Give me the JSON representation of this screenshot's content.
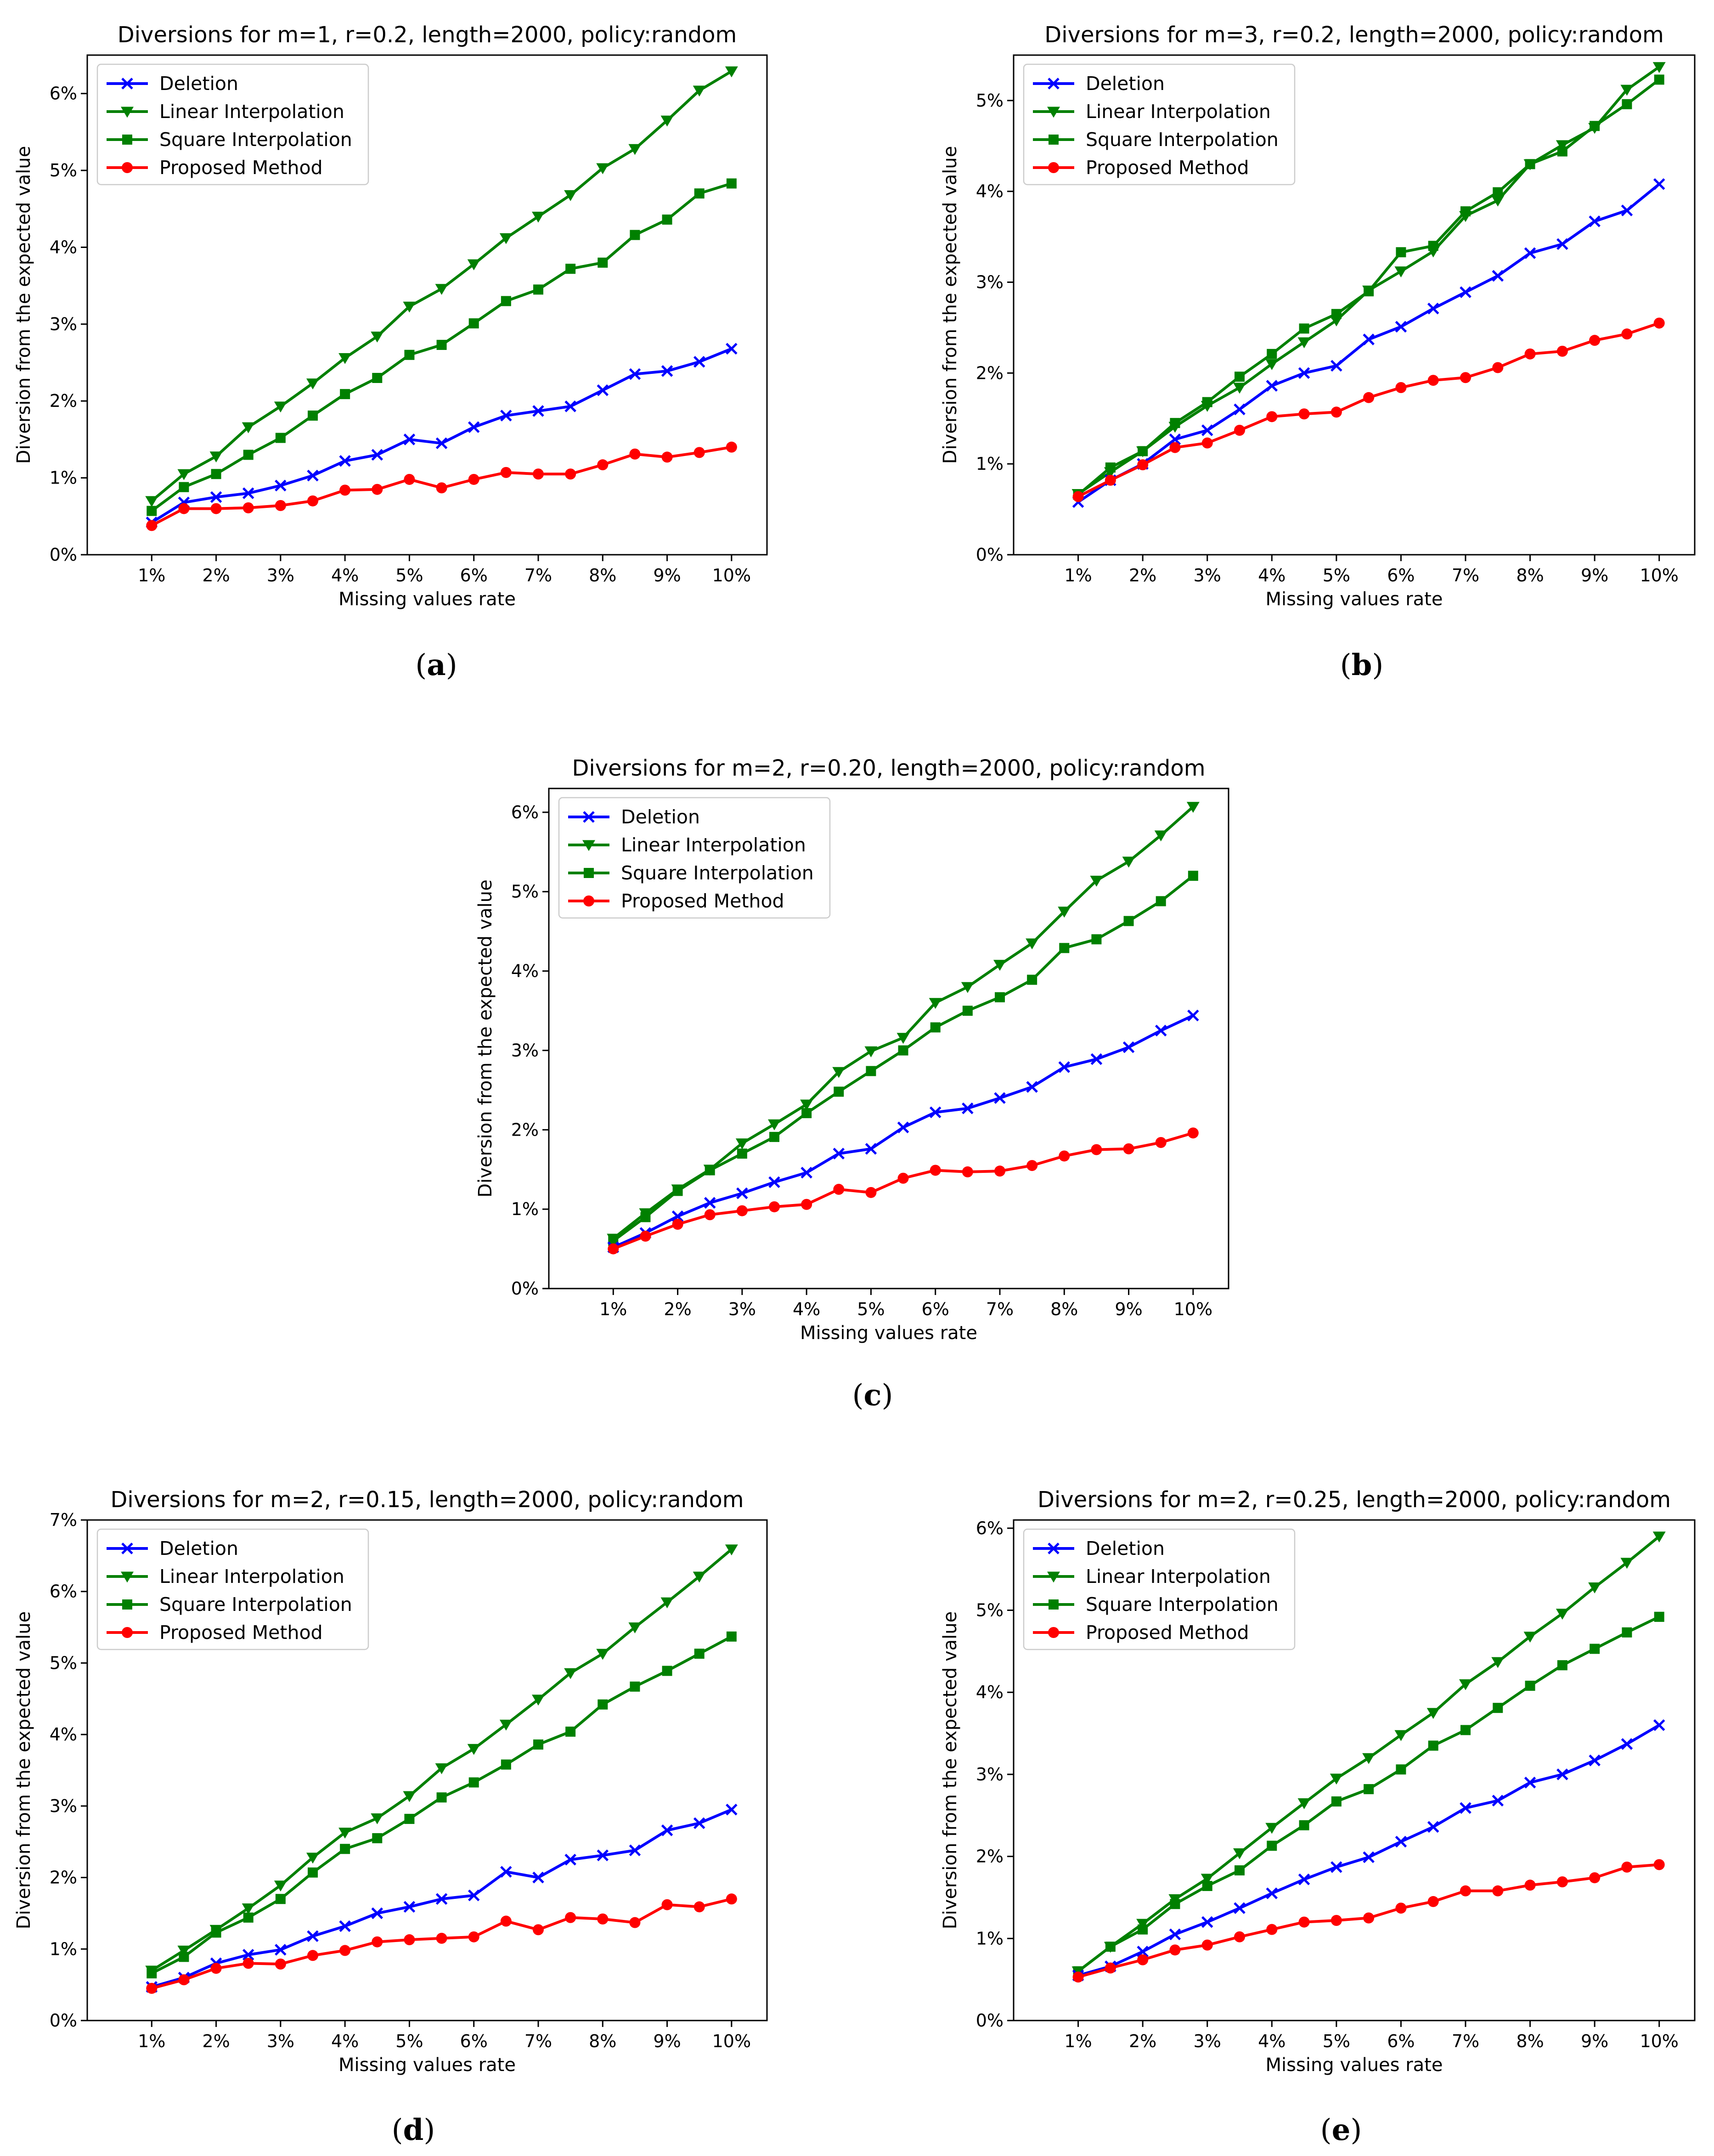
{
  "x_labels": [
    "1%",
    "2%",
    "3%",
    "4%",
    "5%",
    "6%",
    "7%",
    "8%",
    "9%",
    "10%"
  ],
  "colors": {
    "deletion": "#0000ff",
    "linear": "#008000",
    "square": "#008000",
    "proposed": "#ff0000"
  },
  "chart_data": [
    {
      "type": "line",
      "panel_label": "a",
      "title": "Diversions for m=1, r=0.2, length=2000, policy:random",
      "xlabel": "Missing values rate",
      "ylabel": "Diversion from the expected value",
      "x": [
        1,
        1.5,
        2,
        2.5,
        3,
        3.5,
        4,
        4.5,
        5,
        5.5,
        6,
        6.5,
        7,
        7.5,
        8,
        8.5,
        9,
        9.5,
        10
      ],
      "ylim": [
        0,
        6.5
      ],
      "yticks": [
        "0%",
        "1%",
        "2%",
        "3%",
        "4%",
        "5%",
        "6%"
      ],
      "legend": "top-left",
      "series": [
        {
          "name": "Deletion",
          "marker": "x",
          "color": "#0000ff",
          "values": [
            0.42,
            0.68,
            0.75,
            0.8,
            0.9,
            1.03,
            1.22,
            1.3,
            1.5,
            1.45,
            1.66,
            1.81,
            1.87,
            1.93,
            2.14,
            2.35,
            2.39,
            2.51,
            2.68
          ]
        },
        {
          "name": "Linear Interpolation",
          "marker": "v",
          "color": "#008000",
          "values": [
            0.7,
            1.05,
            1.28,
            1.66,
            1.93,
            2.23,
            2.56,
            2.84,
            3.23,
            3.46,
            3.78,
            4.12,
            4.4,
            4.68,
            5.03,
            5.28,
            5.65,
            6.04,
            6.29
          ]
        },
        {
          "name": "Square Interpolation",
          "marker": "s",
          "color": "#008000",
          "values": [
            0.57,
            0.88,
            1.05,
            1.3,
            1.52,
            1.81,
            2.09,
            2.3,
            2.6,
            2.73,
            3.01,
            3.3,
            3.45,
            3.72,
            3.8,
            4.16,
            4.36,
            4.7,
            4.83
          ]
        },
        {
          "name": "Proposed Method",
          "marker": "o",
          "color": "#ff0000",
          "values": [
            0.38,
            0.6,
            0.6,
            0.61,
            0.64,
            0.7,
            0.84,
            0.85,
            0.98,
            0.87,
            0.98,
            1.07,
            1.05,
            1.05,
            1.17,
            1.31,
            1.27,
            1.33,
            1.4
          ]
        }
      ]
    },
    {
      "type": "line",
      "panel_label": "b",
      "title": "Diversions for m=3, r=0.2, length=2000, policy:random",
      "xlabel": "Missing values rate",
      "ylabel": "Diversion from the expected value",
      "x": [
        1,
        1.5,
        2,
        2.5,
        3,
        3.5,
        4,
        4.5,
        5,
        5.5,
        6,
        6.5,
        7,
        7.5,
        8,
        8.5,
        9,
        9.5,
        10
      ],
      "ylim": [
        0,
        5.5
      ],
      "yticks": [
        "0%",
        "1%",
        "2%",
        "3%",
        "4%",
        "5%"
      ],
      "legend": "top-left",
      "series": [
        {
          "name": "Deletion",
          "marker": "x",
          "color": "#0000ff",
          "values": [
            0.58,
            0.82,
            1.0,
            1.27,
            1.37,
            1.6,
            1.86,
            2.0,
            2.08,
            2.37,
            2.51,
            2.71,
            2.89,
            3.07,
            3.32,
            3.42,
            3.67,
            3.79,
            4.08
          ]
        },
        {
          "name": "Linear Interpolation",
          "marker": "v",
          "color": "#008000",
          "values": [
            0.67,
            0.91,
            1.14,
            1.41,
            1.64,
            1.84,
            2.1,
            2.34,
            2.58,
            2.91,
            3.12,
            3.34,
            3.73,
            3.9,
            4.3,
            4.51,
            4.7,
            5.12,
            5.37
          ]
        },
        {
          "name": "Square Interpolation",
          "marker": "s",
          "color": "#008000",
          "values": [
            0.66,
            0.96,
            1.14,
            1.45,
            1.68,
            1.96,
            2.21,
            2.49,
            2.65,
            2.9,
            3.33,
            3.4,
            3.78,
            3.99,
            4.3,
            4.44,
            4.72,
            4.96,
            5.23
          ]
        },
        {
          "name": "Proposed Method",
          "marker": "o",
          "color": "#ff0000",
          "values": [
            0.64,
            0.82,
            0.99,
            1.18,
            1.23,
            1.37,
            1.52,
            1.55,
            1.57,
            1.73,
            1.84,
            1.92,
            1.95,
            2.06,
            2.21,
            2.24,
            2.36,
            2.43,
            2.55
          ]
        }
      ]
    },
    {
      "type": "line",
      "panel_label": "c",
      "title": "Diversions for m=2, r=0.20, length=2000, policy:random",
      "xlabel": "Missing values rate",
      "ylabel": "Diversion from the expected value",
      "x": [
        1,
        1.5,
        2,
        2.5,
        3,
        3.5,
        4,
        4.5,
        5,
        5.5,
        6,
        6.5,
        7,
        7.5,
        8,
        8.5,
        9,
        9.5,
        10
      ],
      "ylim": [
        0,
        6.3
      ],
      "yticks": [
        "0%",
        "1%",
        "2%",
        "3%",
        "4%",
        "5%",
        "6%"
      ],
      "legend": "top-left",
      "series": [
        {
          "name": "Deletion",
          "marker": "x",
          "color": "#0000ff",
          "values": [
            0.52,
            0.7,
            0.91,
            1.08,
            1.2,
            1.34,
            1.46,
            1.7,
            1.76,
            2.03,
            2.22,
            2.27,
            2.4,
            2.54,
            2.79,
            2.89,
            3.04,
            3.25,
            3.44
          ]
        },
        {
          "name": "Linear Interpolation",
          "marker": "v",
          "color": "#008000",
          "values": [
            0.63,
            0.95,
            1.25,
            1.5,
            1.83,
            2.07,
            2.32,
            2.73,
            2.99,
            3.16,
            3.6,
            3.8,
            4.08,
            4.35,
            4.75,
            5.14,
            5.38,
            5.71,
            6.07
          ]
        },
        {
          "name": "Square Interpolation",
          "marker": "s",
          "color": "#008000",
          "values": [
            0.6,
            0.9,
            1.23,
            1.49,
            1.7,
            1.91,
            2.21,
            2.48,
            2.74,
            3.0,
            3.29,
            3.5,
            3.67,
            3.89,
            4.29,
            4.4,
            4.63,
            4.88,
            5.2
          ]
        },
        {
          "name": "Proposed Method",
          "marker": "o",
          "color": "#ff0000",
          "values": [
            0.5,
            0.66,
            0.81,
            0.93,
            0.98,
            1.03,
            1.06,
            1.25,
            1.21,
            1.39,
            1.49,
            1.47,
            1.48,
            1.55,
            1.67,
            1.75,
            1.76,
            1.84,
            1.96
          ]
        }
      ]
    },
    {
      "type": "line",
      "panel_label": "d",
      "title": "Diversions for m=2, r=0.15, length=2000, policy:random",
      "xlabel": "Missing values rate",
      "ylabel": "Diversion from the expected value",
      "x": [
        1,
        1.5,
        2,
        2.5,
        3,
        3.5,
        4,
        4.5,
        5,
        5.5,
        6,
        6.5,
        7,
        7.5,
        8,
        8.5,
        9,
        9.5,
        10
      ],
      "ylim": [
        0,
        7.0
      ],
      "yticks": [
        "0%",
        "1%",
        "2%",
        "3%",
        "4%",
        "5%",
        "6%",
        "7%"
      ],
      "legend": "top-left",
      "series": [
        {
          "name": "Deletion",
          "marker": "x",
          "color": "#0000ff",
          "values": [
            0.47,
            0.6,
            0.8,
            0.92,
            0.99,
            1.18,
            1.32,
            1.5,
            1.59,
            1.7,
            1.75,
            2.08,
            2.0,
            2.25,
            2.31,
            2.38,
            2.66,
            2.76,
            2.95
          ]
        },
        {
          "name": "Linear Interpolation",
          "marker": "v",
          "color": "#008000",
          "values": [
            0.7,
            0.98,
            1.27,
            1.57,
            1.89,
            2.28,
            2.63,
            2.83,
            3.14,
            3.53,
            3.8,
            4.14,
            4.49,
            4.86,
            5.13,
            5.5,
            5.85,
            6.21,
            6.59
          ]
        },
        {
          "name": "Square Interpolation",
          "marker": "s",
          "color": "#008000",
          "values": [
            0.66,
            0.89,
            1.23,
            1.44,
            1.7,
            2.07,
            2.4,
            2.55,
            2.82,
            3.12,
            3.33,
            3.58,
            3.86,
            4.04,
            4.42,
            4.67,
            4.89,
            5.13,
            5.37
          ]
        },
        {
          "name": "Proposed Method",
          "marker": "o",
          "color": "#ff0000",
          "values": [
            0.45,
            0.57,
            0.73,
            0.8,
            0.79,
            0.91,
            0.98,
            1.1,
            1.13,
            1.15,
            1.17,
            1.39,
            1.27,
            1.44,
            1.42,
            1.37,
            1.62,
            1.59,
            1.7
          ]
        }
      ]
    },
    {
      "type": "line",
      "panel_label": "e",
      "title": "Diversions for m=2, r=0.25, length=2000, policy:random",
      "xlabel": "Missing values rate",
      "ylabel": "Diversion from the expected value",
      "x": [
        1,
        1.5,
        2,
        2.5,
        3,
        3.5,
        4,
        4.5,
        5,
        5.5,
        6,
        6.5,
        7,
        7.5,
        8,
        8.5,
        9,
        9.5,
        10
      ],
      "ylim": [
        0,
        6.1
      ],
      "yticks": [
        "0%",
        "1%",
        "2%",
        "3%",
        "4%",
        "5%",
        "6%"
      ],
      "legend": "top-left",
      "series": [
        {
          "name": "Deletion",
          "marker": "x",
          "color": "#0000ff",
          "values": [
            0.55,
            0.66,
            0.84,
            1.05,
            1.2,
            1.37,
            1.55,
            1.72,
            1.87,
            1.99,
            2.18,
            2.36,
            2.59,
            2.68,
            2.9,
            3.0,
            3.17,
            3.37,
            3.6
          ]
        },
        {
          "name": "Linear Interpolation",
          "marker": "v",
          "color": "#008000",
          "values": [
            0.6,
            0.9,
            1.18,
            1.48,
            1.73,
            2.04,
            2.35,
            2.65,
            2.95,
            3.2,
            3.48,
            3.75,
            4.1,
            4.37,
            4.68,
            4.96,
            5.28,
            5.58,
            5.9
          ]
        },
        {
          "name": "Square Interpolation",
          "marker": "s",
          "color": "#008000",
          "values": [
            0.6,
            0.9,
            1.11,
            1.42,
            1.64,
            1.83,
            2.13,
            2.38,
            2.67,
            2.82,
            3.06,
            3.35,
            3.54,
            3.81,
            4.08,
            4.33,
            4.53,
            4.73,
            4.92
          ]
        },
        {
          "name": "Proposed Method",
          "marker": "o",
          "color": "#ff0000",
          "values": [
            0.53,
            0.64,
            0.74,
            0.86,
            0.92,
            1.02,
            1.11,
            1.2,
            1.22,
            1.25,
            1.37,
            1.45,
            1.58,
            1.58,
            1.65,
            1.69,
            1.74,
            1.87,
            1.9
          ]
        }
      ]
    }
  ]
}
